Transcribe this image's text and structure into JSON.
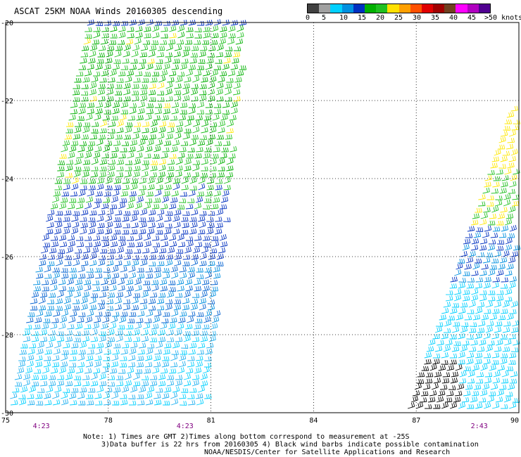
{
  "title": "ASCAT 25KM NOAA Winds 20160305 descending",
  "legend": {
    "swatch_colors": [
      "#404040",
      "#a0a0a0",
      "#00d0ff",
      "#0090e0",
      "#0030c0",
      "#00b000",
      "#20c020",
      "#ffe000",
      "#ffa000",
      "#ff5000",
      "#e00000",
      "#a00000",
      "#704020",
      "#ff00ff",
      "#b000c0",
      "#500090"
    ],
    "labels": [
      "0",
      "5",
      "10",
      "15",
      "20",
      "25",
      "30",
      "35",
      "40",
      "45",
      ">50 knots"
    ]
  },
  "map": {
    "lon_ticks": [
      "75",
      "78",
      "81",
      "84",
      "87",
      "90"
    ],
    "lat_ticks": [
      "-20",
      "-22",
      "-24",
      "-26",
      "-28",
      "-30"
    ],
    "lon_range": [
      75,
      90
    ],
    "lat_range": [
      -30,
      -20
    ],
    "gridlines": true,
    "time_labels": [
      {
        "text": "4:23",
        "lon": 76.0
      },
      {
        "text": "4:23",
        "lon": 80.2
      },
      {
        "text": "2:43",
        "lon": 88.8
      }
    ],
    "time_label_color": "#800080"
  },
  "notes": {
    "line1": "Note: 1) Times are GMT 2)Times along bottom correspond to measurement at -25S",
    "line2": "3)Data buffer is 22 hrs from 20160305 4) Black wind barbs indicate possible contamination",
    "line3": "NOAA/NESDIS/Center for Satellite Applications and Research"
  }
}
